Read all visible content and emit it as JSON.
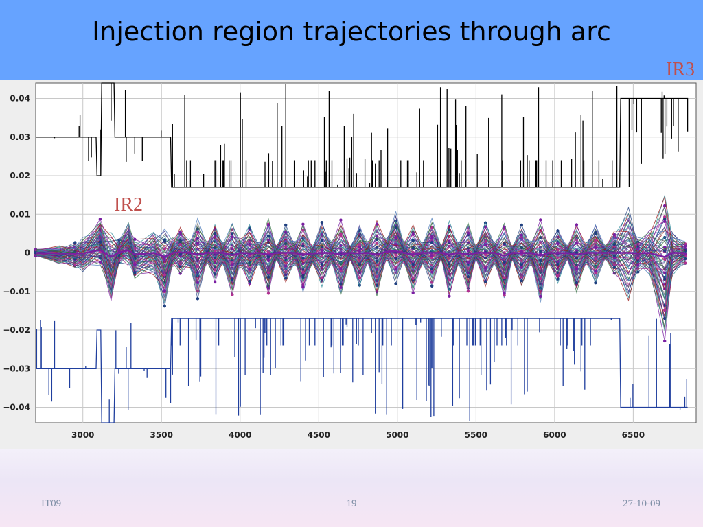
{
  "slide": {
    "title": "Injection region trajectories through arc",
    "labels": {
      "ir3": "IR3",
      "ir2": "IR2"
    },
    "footer": {
      "left": "IT09",
      "center": "19",
      "right": "27-10-09"
    }
  },
  "colors": {
    "header": "#66a3ff",
    "upper_aperture": "#000000",
    "lower_aperture": "#203f9e",
    "label": "#c0504d",
    "trajectories": [
      "#1f3f7f",
      "#2e8b9a",
      "#9b1b1b",
      "#7a1fa2",
      "#2f6f3f",
      "#4a7ab8",
      "#b03090",
      "#606060",
      "#3a2a8a"
    ]
  },
  "chart_data": {
    "type": "line",
    "xlim": [
      2700,
      6900
    ],
    "ylim": [
      -0.044,
      0.044
    ],
    "x_ticks": [
      3000,
      3500,
      4000,
      4500,
      5000,
      5500,
      6000,
      6500
    ],
    "x_tick_labels": [
      "3000",
      "3500",
      "4000",
      "4500",
      "5000",
      "5500",
      "6000",
      "6500"
    ],
    "y_ticks": [
      0.04,
      0.03,
      0.02,
      0.01,
      0,
      -0.01,
      -0.02,
      -0.03,
      -0.04
    ],
    "y_tick_labels": [
      "0.04",
      "0.03",
      "0.02",
      "0.01",
      "0",
      "−0.01",
      "−0.02",
      "−0.03",
      "−0.04"
    ],
    "grid": true,
    "series": [
      {
        "role": "upper aperture",
        "shape": [
          [
            2700,
            0.03
          ],
          [
            3070,
            0.03
          ],
          [
            3090,
            0.02
          ],
          [
            3120,
            0.044
          ],
          [
            3170,
            0.044
          ],
          [
            3200,
            0.03
          ],
          [
            3450,
            0.03
          ],
          [
            3560,
            0.017
          ],
          [
            6400,
            0.017
          ],
          [
            6420,
            0.04
          ],
          [
            6850,
            0.04
          ]
        ]
      },
      {
        "role": "lower aperture",
        "shape": [
          [
            2700,
            -0.03
          ],
          [
            3070,
            -0.03
          ],
          [
            3090,
            -0.02
          ],
          [
            3120,
            -0.044
          ],
          [
            3170,
            -0.044
          ],
          [
            3200,
            -0.03
          ],
          [
            3450,
            -0.03
          ],
          [
            3560,
            -0.017
          ],
          [
            6400,
            -0.017
          ],
          [
            6420,
            -0.04
          ],
          [
            6850,
            -0.04
          ]
        ]
      },
      {
        "role": "trajectory envelope",
        "x": [
          2700,
          2850,
          2950,
          3000,
          3110,
          3180,
          3230,
          3290,
          3330,
          3450,
          3520,
          3570,
          3620,
          3680,
          3730,
          3790,
          3840,
          3890,
          3950,
          4000,
          4060,
          4120,
          4180,
          4230,
          4290,
          4350,
          4400,
          4460,
          4520,
          4580,
          4640,
          4700,
          4760,
          4810,
          4870,
          4930,
          4990,
          5040,
          5100,
          5160,
          5220,
          5280,
          5330,
          5390,
          5450,
          5500,
          5560,
          5620,
          5680,
          5730,
          5790,
          5850,
          5910,
          5960,
          6020,
          6080,
          6140,
          6200,
          6260,
          6320,
          6380,
          6470,
          6530,
          6600,
          6700,
          6750,
          6830
        ],
        "upper": [
          0.001,
          0.002,
          0.003,
          0.004,
          0.009,
          0.006,
          0.004,
          0.008,
          0.004,
          0.006,
          0.007,
          0.004,
          0.007,
          0.004,
          0.009,
          0.003,
          0.008,
          0.003,
          0.008,
          0.004,
          0.008,
          0.003,
          0.009,
          0.002,
          0.008,
          0.003,
          0.008,
          0.002,
          0.009,
          0.003,
          0.009,
          0.002,
          0.008,
          0.003,
          0.009,
          0.004,
          0.011,
          0.003,
          0.008,
          0.003,
          0.009,
          0.002,
          0.009,
          0.003,
          0.008,
          0.002,
          0.009,
          0.003,
          0.008,
          0.002,
          0.008,
          0.003,
          0.009,
          0.003,
          0.007,
          0.002,
          0.008,
          0.003,
          0.008,
          0.002,
          0.006,
          0.013,
          0.004,
          0.006,
          0.017,
          0.006,
          0.003
        ],
        "lower": [
          -0.001,
          -0.003,
          -0.004,
          -0.005,
          -0.004,
          -0.013,
          -0.003,
          -0.004,
          -0.007,
          -0.006,
          -0.014,
          -0.004,
          -0.006,
          -0.004,
          -0.012,
          -0.003,
          -0.008,
          -0.003,
          -0.012,
          -0.004,
          -0.009,
          -0.003,
          -0.012,
          -0.002,
          -0.008,
          -0.003,
          -0.011,
          -0.003,
          -0.009,
          -0.003,
          -0.012,
          -0.002,
          -0.009,
          -0.003,
          -0.012,
          -0.002,
          -0.008,
          -0.003,
          -0.011,
          -0.003,
          -0.009,
          -0.002,
          -0.012,
          -0.003,
          -0.011,
          -0.002,
          -0.009,
          -0.003,
          -0.013,
          -0.002,
          -0.009,
          -0.003,
          -0.014,
          -0.003,
          -0.008,
          -0.002,
          -0.011,
          -0.003,
          -0.008,
          -0.002,
          -0.006,
          -0.013,
          -0.005,
          -0.006,
          -0.024,
          -0.006,
          -0.003
        ]
      }
    ]
  }
}
